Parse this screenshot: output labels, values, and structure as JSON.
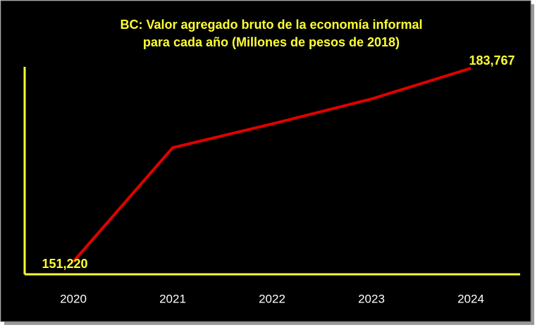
{
  "chart_data": {
    "type": "line",
    "title": [
      "BC: Valor  agregado bruto de la economía informal",
      "para cada año (Millones de pesos de 2018)"
    ],
    "categories": [
      "2020",
      "2021",
      "2022",
      "2023",
      "2024"
    ],
    "values": [
      151220,
      170400,
      174400,
      178600,
      183767
    ],
    "value_labels": [
      "151,220",
      null,
      null,
      null,
      "183,767"
    ],
    "color": "#e00000",
    "axis_color": "#ffff33"
  }
}
